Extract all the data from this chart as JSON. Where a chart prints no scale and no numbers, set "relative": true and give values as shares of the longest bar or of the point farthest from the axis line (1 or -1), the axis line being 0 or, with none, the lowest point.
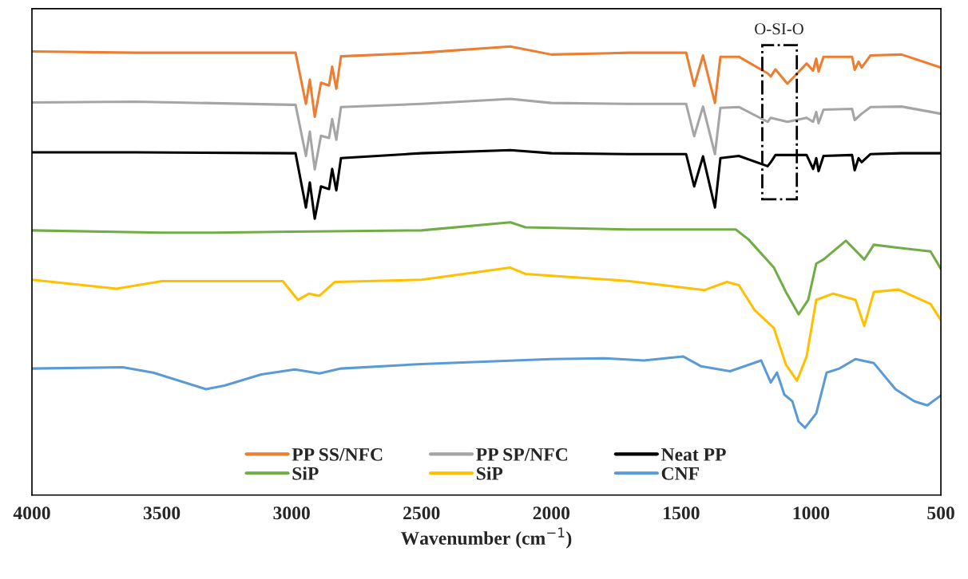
{
  "chart_data": {
    "type": "line",
    "relative": true,
    "xlabel": "Wavenumber (cm$^{−1}$)",
    "xlim": [
      4000,
      500
    ],
    "xticks": [
      4000,
      3500,
      3000,
      2500,
      2000,
      1500,
      1000,
      500
    ],
    "tick_labels": "x",
    "grid": false,
    "legend": "bottom",
    "line_style": "solid",
    "marker": "none",
    "annotations": [
      "O-SI-O"
    ],
    "series": [
      {
        "name": "PP SS/NFC",
        "color": "#ed7d31",
        "x": [
          4000,
          3600,
          3000,
          2985,
          2945,
          2930,
          2911,
          2887,
          2856,
          2844,
          2828,
          2810,
          2500,
          2158,
          2000,
          1700,
          1481,
          1450,
          1416,
          1370,
          1349,
          1278,
          1167,
          1155,
          1137,
          1091,
          1017,
          992,
          980,
          971,
          952,
          842,
          832,
          817,
          805,
          771,
          651,
          500
        ],
        "values": [
          0.989,
          0.986,
          0.986,
          0.986,
          0.872,
          0.926,
          0.843,
          0.919,
          0.913,
          0.955,
          0.906,
          0.978,
          0.986,
          1.0,
          0.982,
          0.986,
          0.986,
          0.912,
          0.98,
          0.874,
          0.977,
          0.977,
          0.94,
          0.933,
          0.949,
          0.917,
          0.962,
          0.946,
          0.973,
          0.944,
          0.977,
          0.977,
          0.948,
          0.966,
          0.953,
          0.98,
          0.982,
          0.953
        ]
      },
      {
        "name": "PP SP/NFC",
        "color": "#a5a5a5",
        "x": [
          4000,
          3600,
          3000,
          2985,
          2945,
          2930,
          2911,
          2887,
          2856,
          2844,
          2828,
          2810,
          2500,
          2158,
          2000,
          1700,
          1481,
          1450,
          1416,
          1370,
          1349,
          1278,
          1167,
          1155,
          1091,
          1017,
          992,
          980,
          971,
          952,
          842,
          832,
          805,
          771,
          651,
          500
        ],
        "values": [
          0.875,
          0.877,
          0.87,
          0.87,
          0.756,
          0.81,
          0.726,
          0.801,
          0.796,
          0.838,
          0.792,
          0.865,
          0.872,
          0.883,
          0.874,
          0.872,
          0.872,
          0.8,
          0.866,
          0.76,
          0.863,
          0.865,
          0.832,
          0.841,
          0.832,
          0.841,
          0.832,
          0.854,
          0.829,
          0.859,
          0.861,
          0.836,
          0.85,
          0.865,
          0.866,
          0.85
        ]
      },
      {
        "name": "Neat PP",
        "color": "#000000",
        "x": [
          4000,
          3600,
          3000,
          2985,
          2945,
          2930,
          2911,
          2887,
          2856,
          2844,
          2828,
          2810,
          2500,
          2158,
          2000,
          1700,
          1481,
          1450,
          1416,
          1370,
          1349,
          1278,
          1167,
          1155,
          1137,
          1091,
          1017,
          992,
          980,
          971,
          952,
          842,
          832,
          817,
          805,
          771,
          651,
          500
        ],
        "values": [
          0.764,
          0.764,
          0.762,
          0.762,
          0.641,
          0.697,
          0.616,
          0.688,
          0.682,
          0.727,
          0.679,
          0.751,
          0.762,
          0.769,
          0.762,
          0.76,
          0.76,
          0.688,
          0.755,
          0.641,
          0.751,
          0.756,
          0.733,
          0.742,
          0.758,
          0.758,
          0.758,
          0.727,
          0.751,
          0.722,
          0.756,
          0.758,
          0.724,
          0.751,
          0.742,
          0.76,
          0.762,
          0.762
        ]
      },
      {
        "name": "SiP",
        "color": "#70ad47",
        "x": [
          4000,
          3500,
          3300,
          3000,
          2500,
          2158,
          2100,
          1700,
          1290,
          1241,
          1143,
          1097,
          1048,
          1011,
          980,
          952,
          866,
          795,
          758,
          675,
          540,
          500
        ],
        "values": [
          0.59,
          0.585,
          0.585,
          0.587,
          0.59,
          0.608,
          0.597,
          0.592,
          0.592,
          0.57,
          0.507,
          0.453,
          0.403,
          0.435,
          0.516,
          0.525,
          0.567,
          0.525,
          0.558,
          0.552,
          0.543,
          0.504
        ]
      },
      {
        "name": "SiP",
        "color": "#ffc000",
        "x": [
          4000,
          3674,
          3500,
          3034,
          2976,
          2933,
          2893,
          2834,
          2500,
          2158,
          2100,
          2000,
          1700,
          1410,
          1324,
          1278,
          1217,
          1143,
          1097,
          1054,
          1017,
          980,
          915,
          829,
          795,
          758,
          663,
          540,
          500
        ],
        "values": [
          0.48,
          0.46,
          0.477,
          0.477,
          0.435,
          0.449,
          0.444,
          0.475,
          0.48,
          0.507,
          0.493,
          0.489,
          0.477,
          0.457,
          0.475,
          0.468,
          0.412,
          0.372,
          0.291,
          0.255,
          0.309,
          0.435,
          0.449,
          0.435,
          0.377,
          0.453,
          0.458,
          0.426,
          0.39
        ]
      },
      {
        "name": "CNF",
        "color": "#5b9bd5",
        "x": [
          4000,
          3650,
          3533,
          3330,
          3259,
          3117,
          2988,
          2893,
          2810,
          2500,
          2000,
          1800,
          1644,
          1493,
          1423,
          1312,
          1192,
          1155,
          1131,
          1103,
          1072,
          1048,
          1023,
          980,
          940,
          891,
          829,
          758,
          675,
          602,
          552,
          500
        ],
        "values": [
          0.282,
          0.285,
          0.273,
          0.236,
          0.244,
          0.269,
          0.28,
          0.271,
          0.282,
          0.292,
          0.303,
          0.305,
          0.3,
          0.309,
          0.287,
          0.276,
          0.3,
          0.251,
          0.273,
          0.224,
          0.209,
          0.164,
          0.15,
          0.182,
          0.273,
          0.282,
          0.303,
          0.294,
          0.236,
          0.209,
          0.2,
          0.222
        ]
      }
    ]
  }
}
